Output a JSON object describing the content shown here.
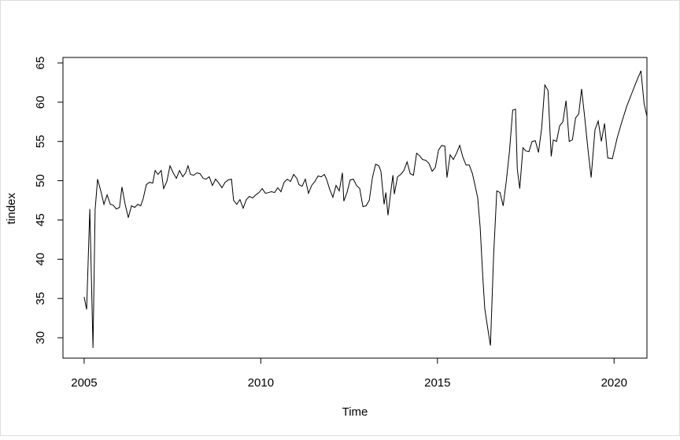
{
  "chart_data": {
    "type": "line",
    "xlabel": "Time",
    "ylabel": "tindex",
    "color": "#000000",
    "xlim": [
      2004.4,
      2020.93
    ],
    "ylim": [
      27.4,
      65.7
    ],
    "xticks": [
      2005,
      2010,
      2015,
      2020
    ],
    "yticks": [
      30,
      35,
      40,
      45,
      50,
      55,
      60,
      65
    ],
    "x": [
      2005.0,
      2005.07,
      2005.16,
      2005.25,
      2005.31,
      2005.38,
      2005.47,
      2005.56,
      2005.65,
      2005.74,
      2005.82,
      2005.91,
      2006.0,
      2006.07,
      2006.16,
      2006.25,
      2006.34,
      2006.43,
      2006.52,
      2006.6,
      2006.67,
      2006.76,
      2006.85,
      2006.94,
      2007.01,
      2007.09,
      2007.18,
      2007.25,
      2007.34,
      2007.43,
      2007.52,
      2007.61,
      2007.7,
      2007.79,
      2007.87,
      2007.94,
      2008.01,
      2008.1,
      2008.19,
      2008.28,
      2008.37,
      2008.45,
      2008.54,
      2008.63,
      2008.72,
      2008.81,
      2008.9,
      2008.99,
      2009.08,
      2009.17,
      2009.23,
      2009.32,
      2009.41,
      2009.5,
      2009.59,
      2009.68,
      2009.77,
      2009.86,
      2009.95,
      2010.04,
      2010.13,
      2010.22,
      2010.3,
      2010.39,
      2010.48,
      2010.57,
      2010.66,
      2010.75,
      2010.84,
      2010.93,
      2011.02,
      2011.08,
      2011.17,
      2011.26,
      2011.35,
      2011.44,
      2011.53,
      2011.62,
      2011.71,
      2011.8,
      2011.86,
      2011.95,
      2012.04,
      2012.13,
      2012.22,
      2012.31,
      2012.35,
      2012.44,
      2012.53,
      2012.62,
      2012.71,
      2012.8,
      2012.89,
      2012.98,
      2013.07,
      2013.16,
      2013.25,
      2013.34,
      2013.4,
      2013.49,
      2013.54,
      2013.6,
      2013.69,
      2013.74,
      2013.78,
      2013.87,
      2013.96,
      2014.05,
      2014.14,
      2014.23,
      2014.32,
      2014.41,
      2014.49,
      2014.58,
      2014.67,
      2014.76,
      2014.85,
      2014.94,
      2015.03,
      2015.12,
      2015.21,
      2015.27,
      2015.36,
      2015.45,
      2015.54,
      2015.63,
      2015.72,
      2015.81,
      2015.9,
      2015.99,
      2016.05,
      2016.14,
      2016.21,
      2016.28,
      2016.34,
      2016.43,
      2016.5,
      2016.59,
      2016.68,
      2016.77,
      2016.86,
      2016.95,
      2017.04,
      2017.13,
      2017.21,
      2017.26,
      2017.33,
      2017.42,
      2017.5,
      2017.59,
      2017.68,
      2017.77,
      2017.86,
      2017.95,
      2018.04,
      2018.13,
      2018.22,
      2018.28,
      2018.37,
      2018.46,
      2018.55,
      2018.64,
      2018.73,
      2018.82,
      2018.91,
      2019.0,
      2019.08,
      2019.17,
      2019.26,
      2019.35,
      2019.46,
      2019.55,
      2019.64,
      2019.73,
      2019.82,
      2019.95,
      2020.09,
      2020.22,
      2020.36,
      2020.49,
      2020.62,
      2020.76,
      2020.85,
      2020.93
    ],
    "values": [
      35.2,
      33.6,
      46.4,
      28.7,
      46.3,
      50.2,
      48.7,
      47.0,
      48.2,
      47.0,
      46.9,
      46.4,
      46.6,
      49.2,
      47.0,
      45.3,
      46.8,
      46.6,
      47.0,
      46.8,
      47.7,
      49.5,
      49.8,
      49.7,
      51.3,
      50.8,
      51.3,
      49.0,
      49.9,
      51.9,
      51.0,
      50.3,
      51.3,
      50.5,
      51.0,
      51.9,
      50.8,
      50.7,
      51.0,
      50.9,
      50.3,
      50.2,
      50.5,
      49.4,
      50.2,
      49.7,
      49.1,
      49.8,
      50.1,
      50.2,
      47.5,
      47.0,
      47.6,
      46.5,
      47.6,
      48.0,
      47.8,
      48.2,
      48.5,
      49.0,
      48.4,
      48.5,
      48.6,
      48.5,
      49.1,
      48.6,
      49.8,
      50.2,
      49.9,
      50.8,
      50.3,
      49.5,
      49.3,
      50.2,
      48.4,
      49.4,
      49.9,
      50.6,
      50.5,
      50.8,
      50.2,
      48.9,
      47.9,
      49.4,
      48.7,
      51.0,
      47.4,
      48.5,
      50.1,
      50.2,
      49.4,
      49.0,
      46.7,
      46.8,
      47.5,
      50.4,
      52.1,
      51.9,
      51.2,
      47.0,
      48.5,
      45.6,
      49.0,
      50.7,
      48.3,
      50.5,
      50.8,
      51.3,
      52.4,
      50.9,
      50.7,
      53.5,
      53.2,
      52.7,
      52.6,
      52.2,
      51.2,
      51.7,
      53.9,
      54.5,
      54.4,
      50.4,
      53.3,
      52.7,
      53.5,
      54.5,
      53.0,
      52.0,
      52.0,
      50.9,
      49.7,
      47.8,
      44.0,
      38.0,
      33.7,
      31.0,
      29.0,
      40.5,
      48.7,
      48.5,
      46.8,
      50.0,
      53.8,
      59.0,
      59.1,
      51.5,
      49.0,
      54.2,
      53.8,
      53.7,
      55.0,
      55.1,
      53.6,
      56.7,
      62.2,
      61.5,
      53.1,
      55.2,
      55.0,
      57.0,
      57.5,
      60.2,
      55.0,
      55.2,
      58.0,
      58.5,
      61.7,
      58.0,
      54.0,
      50.4,
      56.5,
      57.6,
      55.0,
      57.3,
      52.9,
      52.8,
      55.5,
      57.5,
      59.5,
      61.0,
      62.5,
      64.0,
      59.8,
      58.2
    ]
  }
}
